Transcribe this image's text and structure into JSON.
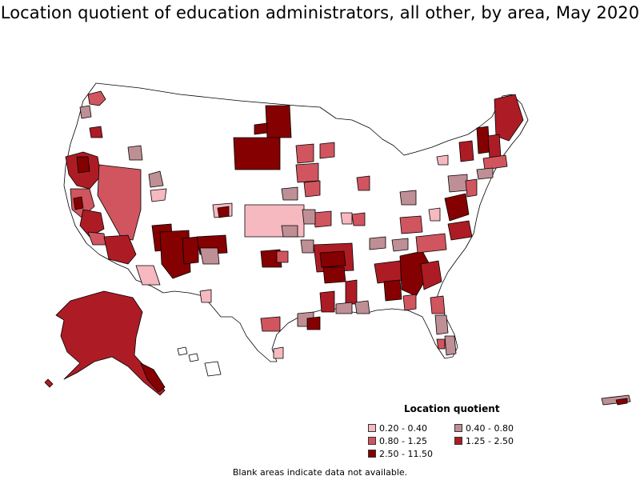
{
  "title": "Location quotient of education administrators, all other, by area, May 2020",
  "legend": {
    "title": "Location quotient",
    "items": [
      {
        "label": "0.20 - 0.40",
        "color": "#f6b9c0"
      },
      {
        "label": "0.40 - 0.80",
        "color": "#bf8f96"
      },
      {
        "label": "0.80 - 1.25",
        "color": "#d0555f"
      },
      {
        "label": "1.25 - 2.50",
        "color": "#ad1c25"
      },
      {
        "label": "2.50 - 11.50",
        "color": "#850000"
      }
    ]
  },
  "note": "Blank areas indicate data not available.",
  "colors": {
    "outline": "#000000",
    "blank": "#ffffff"
  }
}
